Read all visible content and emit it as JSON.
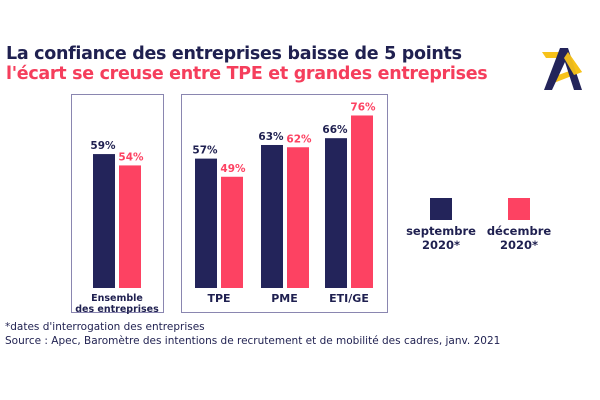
{
  "header": {
    "title": "La confiance des entreprises baisse de 5 points",
    "subtitle": "l'écart se creuse entre TPE et grandes entreprises"
  },
  "logo": {
    "icon": "apec-logo-icon",
    "colors": {
      "navy": "#23245a",
      "yellow": "#f7c21a"
    }
  },
  "colors": {
    "navy": "#23245a",
    "pink": "#fd4262",
    "text": "#1f2050",
    "border": "#8a86b0"
  },
  "chart_data": {
    "type": "bar",
    "title": "La confiance des entreprises baisse de 5 points",
    "subtitle": "l'écart se creuse entre TPE et grandes entreprises",
    "categories": [
      "Ensemble des entreprises",
      "TPE",
      "PME",
      "ETI/GE"
    ],
    "series": [
      {
        "name": "septembre 2020*",
        "color": "#23245a",
        "values": [
          59,
          57,
          63,
          66
        ],
        "labels": [
          "59%",
          "57%",
          "63%",
          "66%"
        ]
      },
      {
        "name": "décembre 2020*",
        "color": "#fd4262",
        "values": [
          54,
          49,
          62,
          76
        ],
        "labels": [
          "54%",
          "49%",
          "62%",
          "76%"
        ]
      }
    ],
    "xlabel": "",
    "ylabel": "",
    "ylim": [
      0,
      100
    ],
    "grid": false,
    "legend": "right"
  },
  "category_labels": {
    "ensemble_line1": "Ensemble",
    "ensemble_line2": "des entreprises",
    "tpe": "TPE",
    "pme": "PME",
    "eti": "ETI/GE"
  },
  "legend": {
    "sept_line1": "septembre",
    "sept_line2": "2020*",
    "dec_line1": "décembre",
    "dec_line2": "2020*"
  },
  "footer": {
    "note": "*dates d'interrogation des entreprises",
    "source": "Source : Apec, Baromètre des intentions de recrutement et de mobilité des cadres, janv. 2021"
  }
}
